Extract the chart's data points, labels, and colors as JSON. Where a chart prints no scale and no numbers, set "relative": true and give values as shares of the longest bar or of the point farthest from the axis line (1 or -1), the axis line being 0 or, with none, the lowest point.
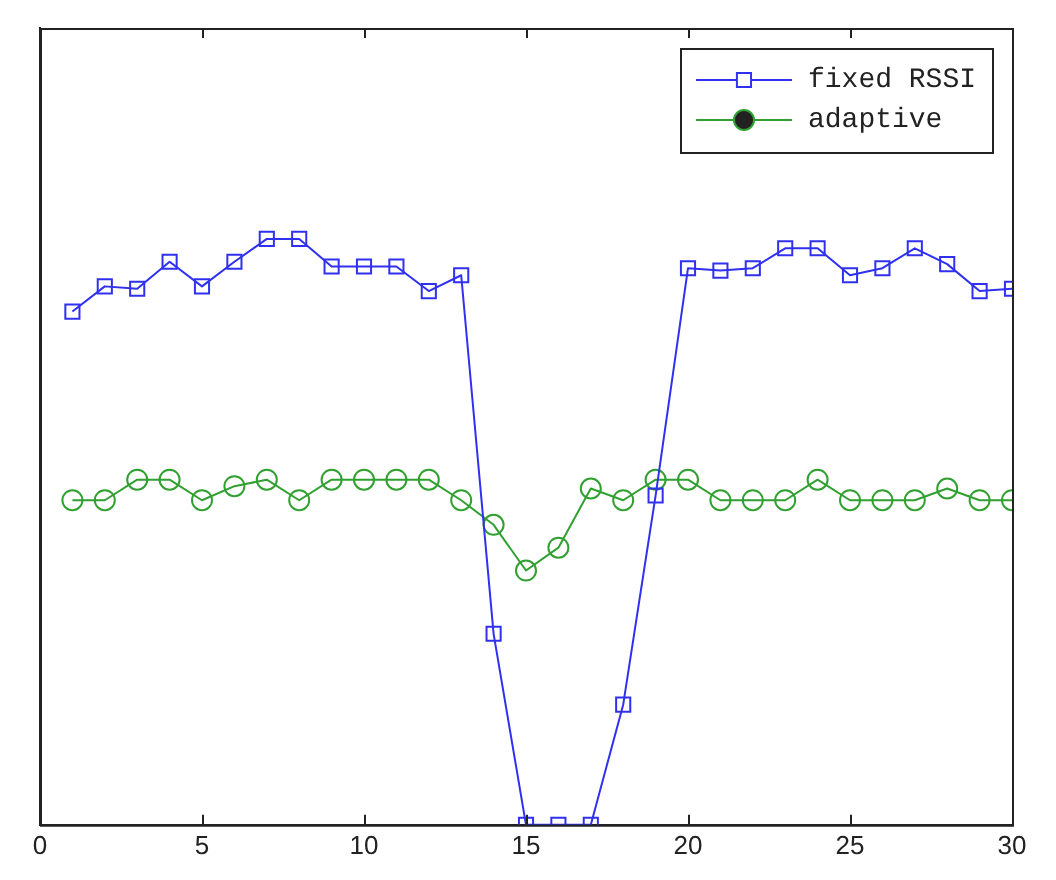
{
  "chart_data": {
    "type": "line",
    "relative": true,
    "x": [
      1,
      2,
      3,
      4,
      5,
      6,
      7,
      8,
      9,
      10,
      11,
      12,
      13,
      14,
      15,
      16,
      17,
      18,
      19,
      20,
      21,
      22,
      23,
      24,
      25,
      26,
      27,
      28,
      29,
      30
    ],
    "xlim": [
      0,
      30
    ],
    "xticks": [
      0,
      5,
      10,
      15,
      20,
      25,
      30
    ],
    "tick_labels": "x",
    "grid": false,
    "legend": "top right",
    "series": [
      {
        "name": "fixed RSSI",
        "color": "#3030f0",
        "marker": "square",
        "values": [
          0.876,
          0.919,
          0.915,
          0.961,
          0.919,
          0.961,
          1,
          1,
          0.953,
          0.953,
          0.953,
          0.911,
          0.938,
          0.326,
          0,
          0,
          0,
          0.205,
          0.562,
          0.95,
          0.946,
          0.95,
          0.984,
          0.984,
          0.938,
          0.95,
          0.984,
          0.957,
          0.911,
          0.915
        ]
      },
      {
        "name": "adaptive",
        "color": "#30a030",
        "marker": "circle",
        "values": [
          0.554,
          0.554,
          0.589,
          0.589,
          0.554,
          0.578,
          0.589,
          0.554,
          0.589,
          0.589,
          0.589,
          0.589,
          0.554,
          0.512,
          0.434,
          0.473,
          0.574,
          0.554,
          0.589,
          0.589,
          0.554,
          0.554,
          0.554,
          0.589,
          0.554,
          0.554,
          0.554,
          0.574,
          0.554,
          0.554
        ]
      }
    ]
  }
}
